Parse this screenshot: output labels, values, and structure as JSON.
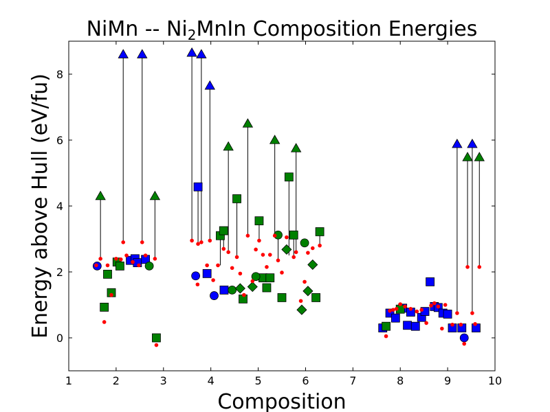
{
  "chart_data": {
    "type": "scatter",
    "title_prefix": "NiMn -- Ni",
    "title_sub": "2",
    "title_suffix": "MnIn Composition Energies",
    "xlabel": "Composition",
    "ylabel": "Energy above Hull (eV/fu)",
    "xlim": [
      1,
      10
    ],
    "ylim": [
      -1,
      9
    ],
    "xticks": [
      1,
      2,
      3,
      4,
      5,
      6,
      7,
      8,
      9,
      10
    ],
    "yticks": [
      0,
      2,
      4,
      6,
      8
    ],
    "grid": false,
    "colors": {
      "blue": "#0000ff",
      "green": "#008000",
      "red": "#ff0000",
      "stem": "#000000"
    },
    "stems": [
      [
        1.67,
        4.3,
        2.4
      ],
      [
        2.15,
        8.6,
        2.9
      ],
      [
        2.55,
        8.6,
        2.9
      ],
      [
        2.82,
        4.3,
        2.4
      ],
      [
        3.6,
        8.65,
        2.95
      ],
      [
        3.8,
        8.6,
        2.9
      ],
      [
        3.98,
        7.65,
        2.95
      ],
      [
        3.73,
        4.58,
        2.85
      ],
      [
        4.37,
        5.8,
        2.6
      ],
      [
        4.78,
        6.5,
        3.1
      ],
      [
        5.35,
        6.0,
        3.1
      ],
      [
        5.8,
        5.75,
        2.6
      ],
      [
        5.65,
        4.88,
        2.5
      ],
      [
        4.55,
        4.22,
        2.45
      ],
      [
        4.2,
        3.1,
        2.2
      ],
      [
        4.27,
        3.25,
        2.7
      ],
      [
        5.02,
        3.55,
        2.95
      ],
      [
        5.42,
        3.12,
        2.35
      ],
      [
        5.75,
        3.12,
        2.45
      ],
      [
        6.3,
        3.22,
        2.8
      ],
      [
        9.2,
        5.88,
        0.75
      ],
      [
        9.52,
        5.88,
        0.75
      ],
      [
        9.42,
        5.48,
        2.15
      ],
      [
        9.67,
        5.48,
        2.15
      ]
    ],
    "series": [
      {
        "marker": "triangle",
        "color": "blue",
        "points": [
          [
            2.15,
            8.6
          ],
          [
            2.55,
            8.6
          ],
          [
            3.6,
            8.65
          ],
          [
            3.8,
            8.6
          ],
          [
            3.98,
            7.65
          ],
          [
            9.2,
            5.88
          ],
          [
            9.52,
            5.88
          ]
        ]
      },
      {
        "marker": "triangle",
        "color": "green",
        "points": [
          [
            1.67,
            4.3
          ],
          [
            2.82,
            4.3
          ],
          [
            4.37,
            5.8
          ],
          [
            4.78,
            6.5
          ],
          [
            5.35,
            6.0
          ],
          [
            5.8,
            5.75
          ],
          [
            9.42,
            5.48
          ],
          [
            9.67,
            5.48
          ]
        ]
      },
      {
        "marker": "square",
        "color": "blue",
        "points": [
          [
            2.3,
            2.35
          ],
          [
            2.4,
            2.4
          ],
          [
            2.45,
            2.28
          ],
          [
            2.62,
            2.38
          ],
          [
            3.73,
            4.58
          ],
          [
            3.92,
            1.95
          ],
          [
            4.28,
            1.45
          ],
          [
            7.63,
            0.3
          ],
          [
            7.78,
            0.75
          ],
          [
            7.9,
            0.6
          ],
          [
            8.05,
            0.9
          ],
          [
            8.15,
            0.38
          ],
          [
            8.22,
            0.78
          ],
          [
            8.32,
            0.35
          ],
          [
            8.45,
            0.62
          ],
          [
            8.52,
            0.8
          ],
          [
            8.63,
            1.7
          ],
          [
            8.72,
            0.95
          ],
          [
            8.8,
            0.92
          ],
          [
            8.9,
            0.75
          ],
          [
            9.0,
            0.72
          ],
          [
            9.1,
            0.3
          ],
          [
            9.3,
            0.3
          ],
          [
            9.6,
            0.3
          ]
        ]
      },
      {
        "marker": "square",
        "color": "green",
        "points": [
          [
            1.75,
            0.93
          ],
          [
            1.82,
            1.93
          ],
          [
            1.9,
            1.37
          ],
          [
            2.02,
            2.3
          ],
          [
            2.08,
            2.18
          ],
          [
            2.85,
            0.0
          ],
          [
            4.2,
            3.1
          ],
          [
            4.27,
            3.25
          ],
          [
            4.55,
            4.22
          ],
          [
            4.68,
            1.18
          ],
          [
            5.02,
            3.55
          ],
          [
            5.1,
            1.82
          ],
          [
            5.18,
            1.52
          ],
          [
            5.25,
            1.82
          ],
          [
            5.5,
            1.22
          ],
          [
            5.65,
            4.88
          ],
          [
            5.75,
            3.12
          ],
          [
            6.22,
            1.22
          ],
          [
            6.3,
            3.22
          ],
          [
            7.7,
            0.35
          ],
          [
            8.0,
            0.87
          ]
        ]
      },
      {
        "marker": "circle",
        "color": "blue",
        "points": [
          [
            1.6,
            2.18
          ],
          [
            3.68,
            1.88
          ],
          [
            4.07,
            1.28
          ],
          [
            9.35,
            0.0
          ]
        ]
      },
      {
        "marker": "circle",
        "color": "green",
        "points": [
          [
            2.7,
            2.18
          ],
          [
            4.45,
            1.45
          ],
          [
            4.95,
            1.86
          ],
          [
            5.42,
            3.12
          ],
          [
            5.98,
            2.88
          ]
        ]
      },
      {
        "marker": "diamond",
        "color": "green",
        "points": [
          [
            4.62,
            1.5
          ],
          [
            4.88,
            1.55
          ],
          [
            5.6,
            2.68
          ],
          [
            5.92,
            0.85
          ],
          [
            6.05,
            1.42
          ],
          [
            6.15,
            2.22
          ]
        ]
      },
      {
        "marker": "dot",
        "color": "red",
        "points": [
          [
            1.58,
            2.2
          ],
          [
            1.67,
            2.4
          ],
          [
            1.75,
            0.48
          ],
          [
            1.82,
            2.2
          ],
          [
            1.9,
            1.3
          ],
          [
            2.0,
            2.4
          ],
          [
            2.1,
            2.38
          ],
          [
            2.15,
            2.9
          ],
          [
            2.22,
            2.5
          ],
          [
            2.35,
            2.3
          ],
          [
            2.48,
            2.2
          ],
          [
            2.55,
            2.9
          ],
          [
            2.62,
            2.5
          ],
          [
            2.82,
            2.4
          ],
          [
            2.85,
            -0.22
          ],
          [
            3.6,
            2.95
          ],
          [
            3.72,
            1.62
          ],
          [
            3.73,
            2.85
          ],
          [
            3.8,
            2.9
          ],
          [
            3.92,
            2.2
          ],
          [
            3.98,
            2.95
          ],
          [
            4.05,
            1.75
          ],
          [
            4.15,
            2.2
          ],
          [
            4.27,
            2.7
          ],
          [
            4.37,
            2.6
          ],
          [
            4.45,
            2.12
          ],
          [
            4.55,
            2.45
          ],
          [
            4.62,
            1.95
          ],
          [
            4.7,
            1.3
          ],
          [
            4.78,
            3.1
          ],
          [
            4.88,
            1.72
          ],
          [
            4.95,
            2.68
          ],
          [
            5.02,
            2.95
          ],
          [
            5.1,
            2.52
          ],
          [
            5.18,
            2.15
          ],
          [
            5.25,
            2.52
          ],
          [
            5.35,
            3.1
          ],
          [
            5.42,
            2.35
          ],
          [
            5.5,
            1.98
          ],
          [
            5.6,
            3.05
          ],
          [
            5.75,
            2.45
          ],
          [
            5.8,
            2.6
          ],
          [
            5.9,
            1.12
          ],
          [
            5.98,
            1.7
          ],
          [
            6.05,
            2.58
          ],
          [
            6.15,
            2.72
          ],
          [
            6.3,
            2.8
          ],
          [
            7.7,
            0.05
          ],
          [
            7.78,
            0.82
          ],
          [
            7.85,
            0.85
          ],
          [
            7.92,
            0.88
          ],
          [
            8.0,
            1.02
          ],
          [
            8.1,
            0.95
          ],
          [
            8.22,
            0.88
          ],
          [
            8.35,
            0.8
          ],
          [
            8.45,
            0.85
          ],
          [
            8.55,
            0.45
          ],
          [
            8.65,
            0.98
          ],
          [
            8.72,
            1.05
          ],
          [
            8.8,
            0.95
          ],
          [
            8.88,
            0.28
          ],
          [
            8.95,
            1.0
          ],
          [
            9.1,
            0.4
          ],
          [
            9.2,
            0.75
          ],
          [
            9.28,
            0.4
          ],
          [
            9.35,
            -0.18
          ],
          [
            9.42,
            2.15
          ],
          [
            9.52,
            0.75
          ],
          [
            9.58,
            0.42
          ],
          [
            9.67,
            2.15
          ]
        ]
      }
    ]
  }
}
